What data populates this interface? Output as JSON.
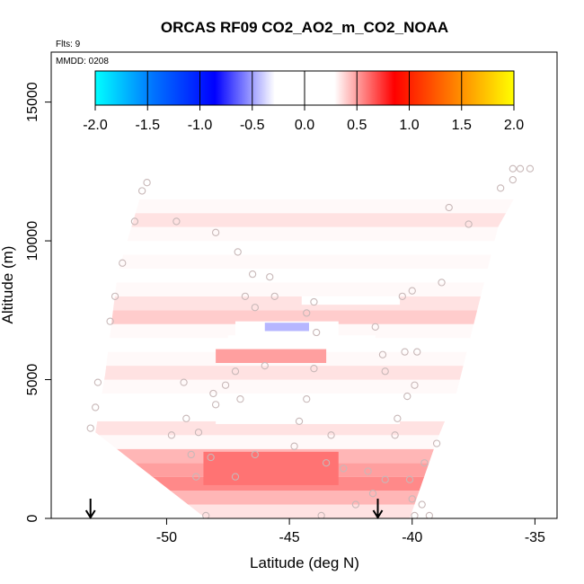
{
  "chart_data": {
    "type": "heatmap",
    "title": "ORCAS RF09 CO2_AO2_m_CO2_NOAA",
    "flights_label": "Flts: 9",
    "date_label": "MMDD: 0208",
    "xlabel": "Latitude (deg N)",
    "ylabel": "Altitude (m)",
    "xlim": [
      -54.7,
      -34.1
    ],
    "ylim": [
      0,
      16800
    ],
    "x_ticks": [
      -50,
      -45,
      -40,
      -35
    ],
    "x_tick_labels": [
      "-50",
      "-45",
      "-40",
      "-35"
    ],
    "y_ticks": [
      0,
      5000,
      10000,
      15000
    ],
    "y_tick_labels": [
      "0",
      "5000",
      "10000",
      "15000"
    ],
    "colorbar": {
      "min": -2.0,
      "max": 2.0,
      "ticks": [
        -2.0,
        -1.5,
        -1.0,
        -0.5,
        0.0,
        0.5,
        1.0,
        1.5,
        2.0
      ],
      "tick_labels": [
        "-2.0",
        "-1.5",
        "-1.0",
        "-0.5",
        "0.0",
        "0.5",
        "1.0",
        "1.5",
        "2.0"
      ],
      "colors": [
        "#00ffff",
        "#0070ff",
        "#0000ff",
        "#ffffff",
        "#ffffff",
        "#ff0000",
        "#ff8000",
        "#ffff00"
      ]
    },
    "field_polygon": [
      [
        -52.9,
        3100
      ],
      [
        -52.5,
        5200
      ],
      [
        -52.0,
        8800
      ],
      [
        -51.0,
        11800
      ],
      [
        -50.8,
        12200
      ],
      [
        -36.9,
        12700
      ],
      [
        -35.1,
        12700
      ],
      [
        -36.5,
        10500
      ],
      [
        -38.2,
        4500
      ],
      [
        -39.0,
        2800
      ],
      [
        -40.1,
        0
      ],
      [
        -48.4,
        0
      ]
    ],
    "bands": [
      {
        "y0": 0,
        "y1": 500,
        "value": 0.35
      },
      {
        "y0": 500,
        "y1": 1000,
        "value": 0.45
      },
      {
        "y0": 1000,
        "y1": 1500,
        "value": 0.55
      },
      {
        "y0": 1500,
        "y1": 2000,
        "value": 0.5
      },
      {
        "y0": 2000,
        "y1": 2500,
        "value": 0.45
      },
      {
        "y0": 2500,
        "y1": 3000,
        "value": 0.3
      },
      {
        "y0": 3000,
        "y1": 3500,
        "value": 0.35
      },
      {
        "y0": 3500,
        "y1": 4000,
        "value": 0.15
      },
      {
        "y0": 4000,
        "y1": 4500,
        "value": 0.25
      },
      {
        "y0": 4500,
        "y1": 5000,
        "value": 0.3
      },
      {
        "y0": 5000,
        "y1": 5500,
        "value": 0.35
      },
      {
        "y0": 5500,
        "y1": 6000,
        "value": 0.3
      },
      {
        "y0": 6000,
        "y1": 6500,
        "value": 0.1
      },
      {
        "y0": 6500,
        "y1": 7000,
        "value": 0.3
      },
      {
        "y0": 7000,
        "y1": 7500,
        "value": 0.4
      },
      {
        "y0": 7500,
        "y1": 8000,
        "value": 0.35
      },
      {
        "y0": 8000,
        "y1": 8500,
        "value": 0.3
      },
      {
        "y0": 8500,
        "y1": 9000,
        "value": 0.25
      },
      {
        "y0": 9000,
        "y1": 9500,
        "value": 0.3
      },
      {
        "y0": 9500,
        "y1": 10000,
        "value": 0.25
      },
      {
        "y0": 10000,
        "y1": 10500,
        "value": 0.3
      },
      {
        "y0": 10500,
        "y1": 11000,
        "value": 0.35
      },
      {
        "y0": 11000,
        "y1": 11500,
        "value": 0.3
      },
      {
        "y0": 11500,
        "y1": 12000,
        "value": 0.25
      },
      {
        "y0": 12000,
        "y1": 12700,
        "value": 0.2
      }
    ],
    "patches": [
      {
        "x0": -47.2,
        "x1": -43.0,
        "y0": 6400,
        "y1": 7100,
        "value": -0.25
      },
      {
        "x0": -46.0,
        "x1": -44.2,
        "y0": 6750,
        "y1": 7050,
        "value": -0.45
      },
      {
        "x0": -47.5,
        "x1": -41.5,
        "y0": 6300,
        "y1": 6600,
        "value": 0.0
      },
      {
        "x0": -48.0,
        "x1": -40.5,
        "y0": 3400,
        "y1": 3900,
        "value": 0.05
      },
      {
        "x0": -44.5,
        "x1": -40.5,
        "y0": 7700,
        "y1": 8000,
        "value": 0.05
      },
      {
        "x0": -48.0,
        "x1": -43.5,
        "y0": 5600,
        "y1": 6100,
        "value": 0.5
      },
      {
        "x0": -48.5,
        "x1": -43.0,
        "y0": 1200,
        "y1": 2400,
        "value": 0.6
      }
    ],
    "points": [
      [
        -53.1,
        3250
      ],
      [
        -52.9,
        4000
      ],
      [
        -52.8,
        4900
      ],
      [
        -52.3,
        7100
      ],
      [
        -52.1,
        8000
      ],
      [
        -51.8,
        9200
      ],
      [
        -51.3,
        10700
      ],
      [
        -51.0,
        11800
      ],
      [
        -50.8,
        12100
      ],
      [
        -49.6,
        10700
      ],
      [
        -48.0,
        10300
      ],
      [
        -47.1,
        9600
      ],
      [
        -46.8,
        8000
      ],
      [
        -46.4,
        7600
      ],
      [
        -45.8,
        8700
      ],
      [
        -46.5,
        8800
      ],
      [
        -45.6,
        8000
      ],
      [
        -44.3,
        7400
      ],
      [
        -44.0,
        7800
      ],
      [
        -46.0,
        5500
      ],
      [
        -47.2,
        5300
      ],
      [
        -47.6,
        4800
      ],
      [
        -48.1,
        4500
      ],
      [
        -49.3,
        4900
      ],
      [
        -48.0,
        4100
      ],
      [
        -49.2,
        3600
      ],
      [
        -48.7,
        3100
      ],
      [
        -49.8,
        3000
      ],
      [
        -48.2,
        2200
      ],
      [
        -49.0,
        2300
      ],
      [
        -48.8,
        1500
      ],
      [
        -47.2,
        1500
      ],
      [
        -46.4,
        2300
      ],
      [
        -44.8,
        2600
      ],
      [
        -43.5,
        2000
      ],
      [
        -43.3,
        3000
      ],
      [
        -42.8,
        1800
      ],
      [
        -41.8,
        1700
      ],
      [
        -41.6,
        900
      ],
      [
        -42.3,
        500
      ],
      [
        -41.1,
        1400
      ],
      [
        -40.1,
        1400
      ],
      [
        -40.0,
        700
      ],
      [
        -40.7,
        3000
      ],
      [
        -40.6,
        3600
      ],
      [
        -41.2,
        5900
      ],
      [
        -40.2,
        4400
      ],
      [
        -39.9,
        4800
      ],
      [
        -39.8,
        6000
      ],
      [
        -40.3,
        6000
      ],
      [
        -41.5,
        6900
      ],
      [
        -41.1,
        5300
      ],
      [
        -40.4,
        8000
      ],
      [
        -40.0,
        8200
      ],
      [
        -38.8,
        8500
      ],
      [
        -37.7,
        10600
      ],
      [
        -38.5,
        11200
      ],
      [
        -36.4,
        11900
      ],
      [
        -35.9,
        12600
      ],
      [
        -35.6,
        12600
      ],
      [
        -35.2,
        12600
      ],
      [
        -35.9,
        12200
      ],
      [
        -43.9,
        6700
      ],
      [
        -44.0,
        5400
      ],
      [
        -44.3,
        4300
      ],
      [
        -44.6,
        3500
      ],
      [
        -47.0,
        4300
      ],
      [
        -48.4,
        100
      ],
      [
        -43.7,
        100
      ],
      [
        -39.9,
        100
      ],
      [
        -39.6,
        500
      ],
      [
        -39.3,
        100
      ],
      [
        -39.5,
        2000
      ],
      [
        -39.0,
        2700
      ]
    ],
    "arrows": [
      -53.1,
      -41.4
    ]
  }
}
